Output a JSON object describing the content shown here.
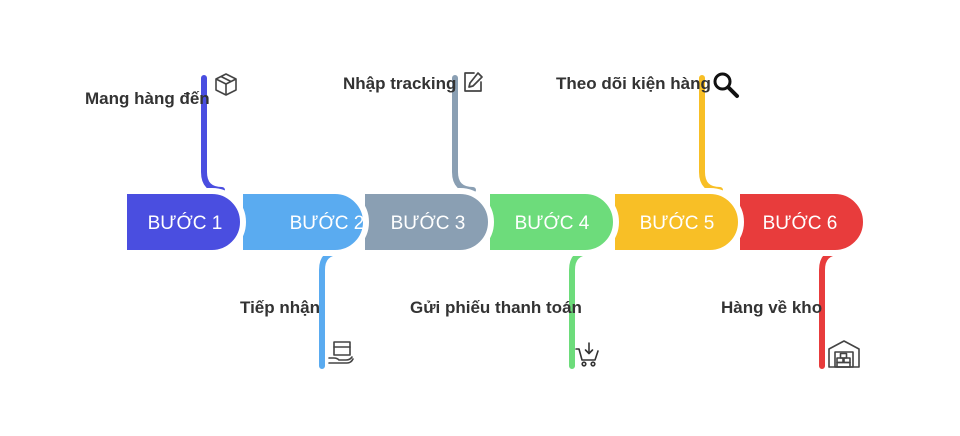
{
  "steps": [
    {
      "label": "BƯỚC 1",
      "color": "#4a4ee0",
      "caption": "Mang hàng đến",
      "icon": "box-icon"
    },
    {
      "label": "BƯỚC 2",
      "color": "#5aabf0",
      "caption": "Tiếp nhận",
      "icon": "receive-package-icon"
    },
    {
      "label": "BƯỚC 3",
      "color": "#8a9fb3",
      "caption": "Nhập tracking",
      "icon": "edit-icon"
    },
    {
      "label": "BƯỚC 4",
      "color": "#6ddc7b",
      "caption": "Gửi phiếu thanh toán",
      "icon": "cart-icon"
    },
    {
      "label": "BƯỚC 5",
      "color": "#f8bf26",
      "caption": "Theo dõi kiện hàng",
      "icon": "search-icon"
    },
    {
      "label": "BƯỚC 6",
      "color": "#e83c3c",
      "caption": "Hàng về kho",
      "icon": "warehouse-icon"
    }
  ]
}
